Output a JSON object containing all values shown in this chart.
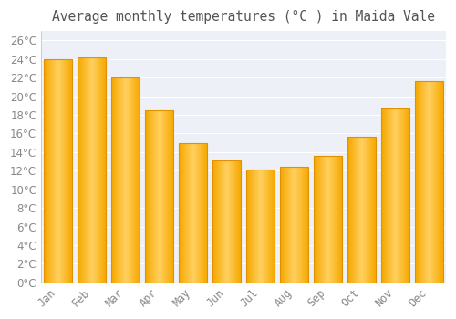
{
  "title": "Average monthly temperatures (°C ) in Maida Vale",
  "months": [
    "Jan",
    "Feb",
    "Mar",
    "Apr",
    "May",
    "Jun",
    "Jul",
    "Aug",
    "Sep",
    "Oct",
    "Nov",
    "Dec"
  ],
  "values": [
    24.0,
    24.2,
    22.0,
    18.5,
    15.0,
    13.1,
    12.1,
    12.4,
    13.6,
    15.7,
    18.7,
    21.6
  ],
  "bar_color_center": "#FFD060",
  "bar_color_edge": "#F5A800",
  "bar_outline_color": "#E09000",
  "plot_bg_color": "#EEF0F8",
  "fig_bg_color": "#FFFFFF",
  "grid_color": "#FFFFFF",
  "tick_label_color": "#888888",
  "title_color": "#555555",
  "ylim": [
    0,
    27
  ],
  "yticks": [
    0,
    2,
    4,
    6,
    8,
    10,
    12,
    14,
    16,
    18,
    20,
    22,
    24,
    26
  ],
  "title_fontsize": 10.5,
  "tick_fontsize": 8.5
}
